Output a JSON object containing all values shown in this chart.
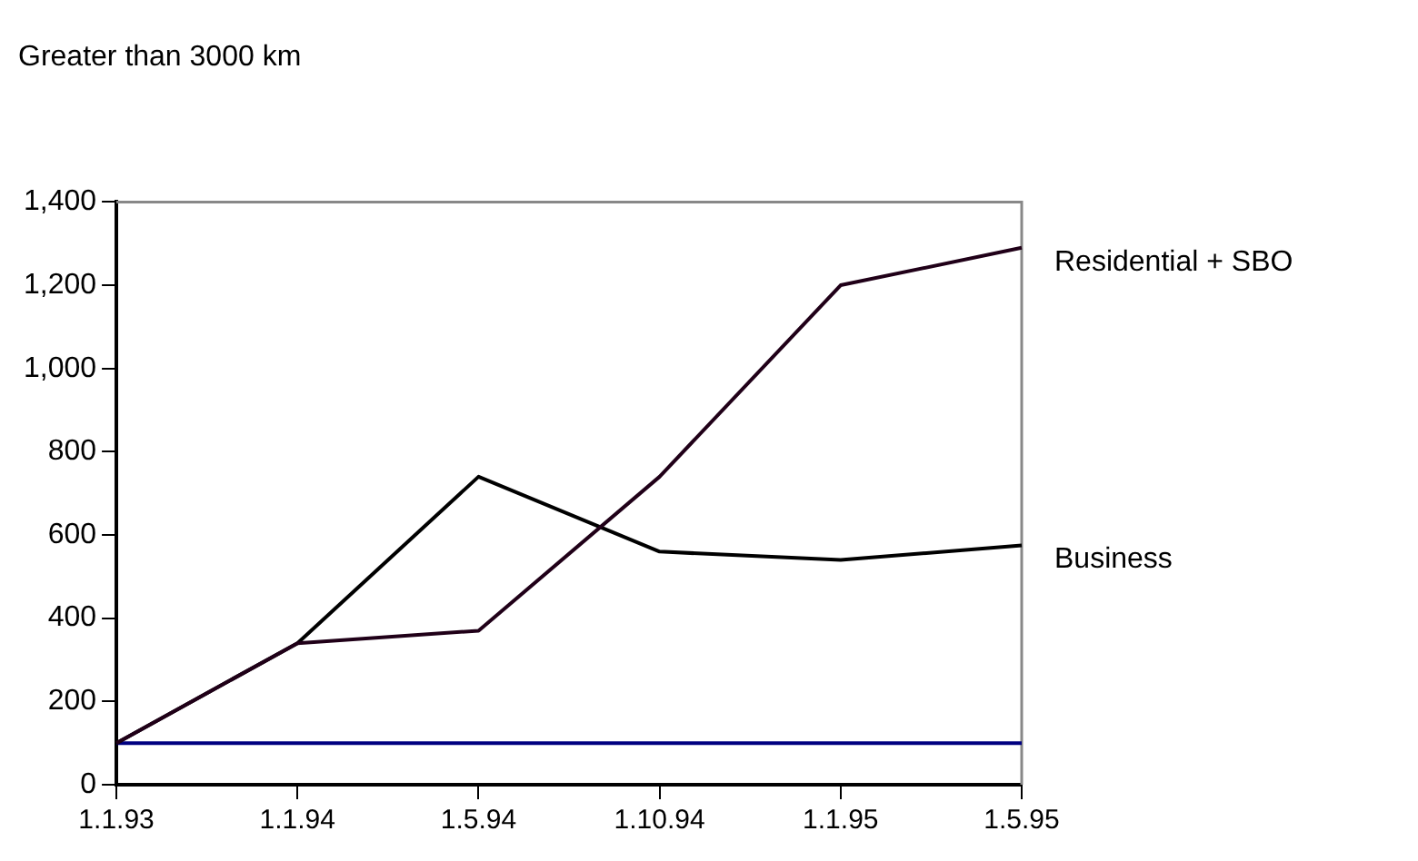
{
  "chart_data": {
    "type": "line",
    "title": "Greater than 3000 km",
    "categories": [
      "1.1.93",
      "1.1.94",
      "1.5.94",
      "1.10.94",
      "1.1.95",
      "1.5.95"
    ],
    "series": [
      {
        "name": "Residential + SBO",
        "color": "#200018",
        "values": [
          100,
          340,
          370,
          740,
          1200,
          1290
        ]
      },
      {
        "name": "Business",
        "color": "#000000",
        "values": [
          100,
          340,
          740,
          560,
          540,
          575
        ]
      }
    ],
    "ylim": [
      0,
      1400
    ],
    "yticks": [
      0,
      {
        "value": 200,
        "label": "200"
      },
      {
        "value": 400,
        "label": "400"
      },
      {
        "value": 600,
        "label": "600"
      },
      {
        "value": 800,
        "label": "800"
      },
      {
        "value": 1000,
        "label": "1,000"
      },
      {
        "value": 1200,
        "label": "1,200"
      },
      {
        "value": 1400,
        "label": "1,400"
      }
    ],
    "ref_lines": [
      {
        "axis": "y",
        "value": 100,
        "color": "#000080"
      }
    ],
    "grid": false,
    "legend": false,
    "marker": "none",
    "line_style": "solid"
  }
}
